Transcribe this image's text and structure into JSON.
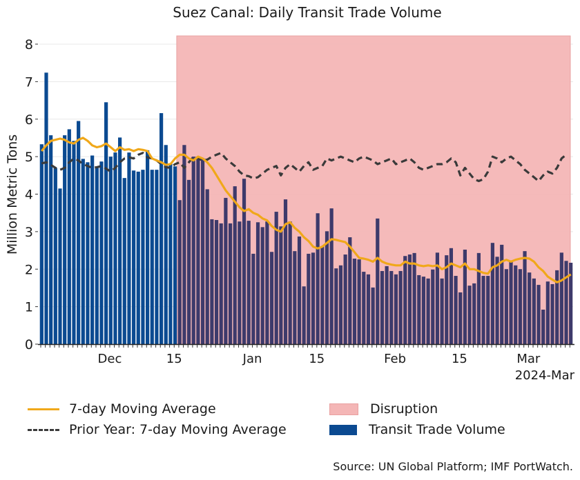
{
  "chart_data": {
    "type": "bar",
    "title": "Suez Canal: Daily Transit Trade Volume",
    "ylabel": "Million Metric Tons",
    "xlabel": "",
    "ylim": [
      0,
      8.2
    ],
    "yticks": [
      0,
      1,
      2,
      3,
      4,
      5,
      6,
      7,
      8
    ],
    "grid": true,
    "start_date": "2023-11-16",
    "end_date": "2024-03-10",
    "xticks": [
      {
        "label": "Dec",
        "date": "2023-12-01"
      },
      {
        "label": "15",
        "date": "2023-12-15"
      },
      {
        "label": "Jan",
        "date": "2024-01-01"
      },
      {
        "label": "15",
        "date": "2024-01-15"
      },
      {
        "label": "Feb",
        "date": "2024-02-01"
      },
      {
        "label": "15",
        "date": "2024-02-15"
      },
      {
        "label": "Mar",
        "date": "2024-03-01"
      }
    ],
    "x_offset_label": "2024-Mar",
    "disruption": {
      "start_date": "2023-12-16",
      "end_date": "2024-03-10",
      "label": "Disruption",
      "color": "#f4b6b6"
    },
    "series": [
      {
        "name": "Transit Trade Volume",
        "type": "bar",
        "color": "#0b4a91",
        "values": [
          5.33,
          7.24,
          5.57,
          4.7,
          4.15,
          5.57,
          5.73,
          5.42,
          5.95,
          4.94,
          4.85,
          5.03,
          4.7,
          4.87,
          6.45,
          5.0,
          5.11,
          5.51,
          4.43,
          5.11,
          4.63,
          4.6,
          4.65,
          5.17,
          4.65,
          4.65,
          6.16,
          5.31,
          4.82,
          4.74,
          3.84,
          5.31,
          4.38,
          5.0,
          4.94,
          4.96,
          4.13,
          3.33,
          3.31,
          3.22,
          3.9,
          3.22,
          4.21,
          3.27,
          4.41,
          3.29,
          2.41,
          3.25,
          3.12,
          3.27,
          2.46,
          3.53,
          3.14,
          3.86,
          3.27,
          2.48,
          2.87,
          1.54,
          2.41,
          2.44,
          3.49,
          2.61,
          3.01,
          3.62,
          2.02,
          2.1,
          2.39,
          2.85,
          2.28,
          2.26,
          1.93,
          1.86,
          1.51,
          3.35,
          1.95,
          2.08,
          1.95,
          1.86,
          1.95,
          2.35,
          2.39,
          2.43,
          1.84,
          1.8,
          1.75,
          1.99,
          2.44,
          1.75,
          2.37,
          2.56,
          1.82,
          1.38,
          2.52,
          1.56,
          1.62,
          2.43,
          1.82,
          1.82,
          2.7,
          2.33,
          2.65,
          2.0,
          2.2,
          2.1,
          2.0,
          2.48,
          1.91,
          1.75,
          1.58,
          0.92,
          1.67,
          1.6,
          1.97,
          2.44,
          2.22,
          2.17
        ]
      },
      {
        "name": "7-day Moving Average",
        "type": "line",
        "color": "#f0a81a",
        "values": [
          5.15,
          5.3,
          5.42,
          5.45,
          5.48,
          5.45,
          5.38,
          5.35,
          5.45,
          5.5,
          5.42,
          5.3,
          5.25,
          5.28,
          5.35,
          5.25,
          5.15,
          5.25,
          5.18,
          5.2,
          5.15,
          5.2,
          5.18,
          5.15,
          4.95,
          4.9,
          4.85,
          4.78,
          4.8,
          4.95,
          5.05,
          5.05,
          4.95,
          4.9,
          5.0,
          4.95,
          4.85,
          4.7,
          4.5,
          4.3,
          4.1,
          3.95,
          3.8,
          3.65,
          3.55,
          3.6,
          3.5,
          3.45,
          3.35,
          3.3,
          3.15,
          3.05,
          3.0,
          3.2,
          3.25,
          3.1,
          3.0,
          2.85,
          2.75,
          2.6,
          2.55,
          2.6,
          2.7,
          2.8,
          2.78,
          2.75,
          2.72,
          2.6,
          2.45,
          2.3,
          2.28,
          2.25,
          2.2,
          2.3,
          2.2,
          2.15,
          2.12,
          2.1,
          2.1,
          2.2,
          2.15,
          2.15,
          2.1,
          2.08,
          2.1,
          2.08,
          2.1,
          2.0,
          2.05,
          2.15,
          2.1,
          2.05,
          2.15,
          2.0,
          2.0,
          1.95,
          1.9,
          1.88,
          2.05,
          2.1,
          2.2,
          2.25,
          2.2,
          2.25,
          2.28,
          2.3,
          2.28,
          2.2,
          2.05,
          1.95,
          1.8,
          1.72,
          1.65,
          1.7,
          1.78,
          1.86
        ]
      },
      {
        "name": "Prior Year: 7-day Moving Average",
        "type": "line",
        "style": "dashed",
        "color": "#3a3a3a",
        "values": [
          4.82,
          4.85,
          4.78,
          4.7,
          4.65,
          4.7,
          4.85,
          4.95,
          4.9,
          4.8,
          4.75,
          4.7,
          4.72,
          4.75,
          4.68,
          4.6,
          4.7,
          4.85,
          4.95,
          4.98,
          4.95,
          5.05,
          5.1,
          4.98,
          4.95,
          4.9,
          4.8,
          4.72,
          4.7,
          4.8,
          4.85,
          4.7,
          4.85,
          5.0,
          4.95,
          4.9,
          4.92,
          5.0,
          5.05,
          5.1,
          4.95,
          4.85,
          4.75,
          4.6,
          4.5,
          4.48,
          4.42,
          4.45,
          4.55,
          4.65,
          4.7,
          4.75,
          4.5,
          4.7,
          4.8,
          4.7,
          4.6,
          4.75,
          4.85,
          4.65,
          4.7,
          4.75,
          4.95,
          4.9,
          4.95,
          5.0,
          4.95,
          4.9,
          4.85,
          4.95,
          5.0,
          4.95,
          4.9,
          4.8,
          4.85,
          4.9,
          4.95,
          4.8,
          4.85,
          4.9,
          4.95,
          4.85,
          4.7,
          4.65,
          4.7,
          4.75,
          4.8,
          4.8,
          4.85,
          4.95,
          4.85,
          4.5,
          4.7,
          4.55,
          4.4,
          4.35,
          4.4,
          4.6,
          5.0,
          4.95,
          4.85,
          4.95,
          5.0,
          4.9,
          4.8,
          4.65,
          4.55,
          4.45,
          4.35,
          4.5,
          4.6,
          4.55,
          4.7,
          4.95,
          5.05
        ]
      }
    ],
    "legend_position": "bottom"
  },
  "legend": {
    "items": [
      {
        "label": "7-day Moving Average",
        "color": "#f0a81a"
      },
      {
        "label": "Prior Year: 7-day Moving Average",
        "color": "#3a3a3a"
      },
      {
        "label": "Disruption",
        "color": "#f4b6b6"
      },
      {
        "label": "Transit Trade Volume",
        "color": "#0b4a91"
      }
    ]
  },
  "source": "Source: UN Global Platform; IMF PortWatch.",
  "colors": {
    "bar_pre": "#0b4a91",
    "bar_disrupted": "#3d3a6b",
    "grid": "#e8e8e8"
  }
}
